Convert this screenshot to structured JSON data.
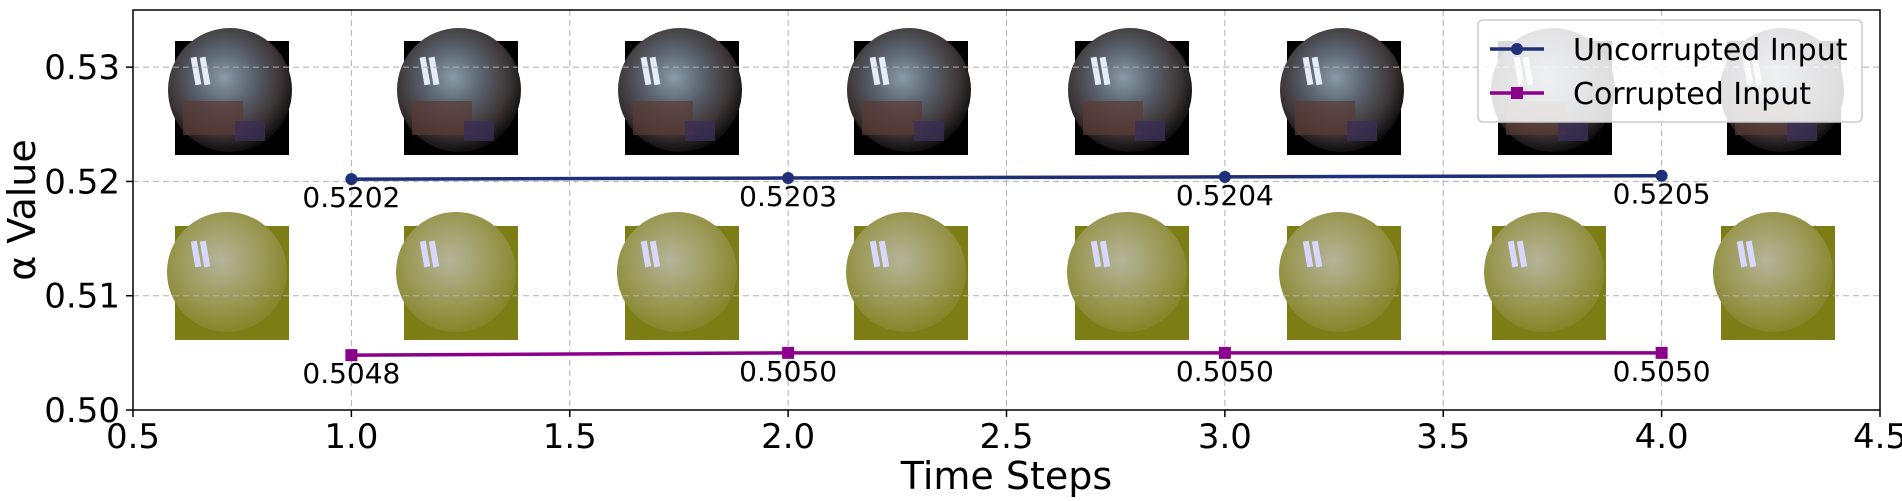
{
  "chart_data": {
    "type": "line",
    "title": "",
    "xlabel": "Time Steps",
    "ylabel": "α Value",
    "xlim": [
      0.5,
      4.5
    ],
    "ylim": [
      0.5,
      0.535
    ],
    "xticks": [
      "0.5",
      "1.0",
      "1.5",
      "2.0",
      "2.5",
      "3.0",
      "3.5",
      "4.0",
      "4.5"
    ],
    "yticks": [
      "0.50",
      "0.51",
      "0.52",
      "0.53"
    ],
    "grid": true,
    "legend_position": "top-right",
    "series": [
      {
        "name": "Uncorrupted Input",
        "color": "#1f2f78",
        "marker": "circle",
        "x": [
          1,
          2,
          3,
          4
        ],
        "values": [
          0.5202,
          0.5203,
          0.5204,
          0.5205
        ],
        "labels": [
          "0.5202",
          "0.5203",
          "0.5204",
          "0.5205"
        ]
      },
      {
        "name": "Corrupted Input",
        "color": "#8b008b",
        "marker": "square",
        "x": [
          1,
          2,
          3,
          4
        ],
        "values": [
          0.5048,
          0.505,
          0.505,
          0.505
        ],
        "labels": [
          "0.5048",
          "0.5050",
          "0.5050",
          "0.5050"
        ]
      }
    ],
    "image_thumbnails": {
      "top_row_description": "uncorrupted fisheye frames",
      "bottom_row_description": "corrupted yellow-tinted noisy frames",
      "top_row_count": 8,
      "bottom_row_count": 8
    }
  }
}
